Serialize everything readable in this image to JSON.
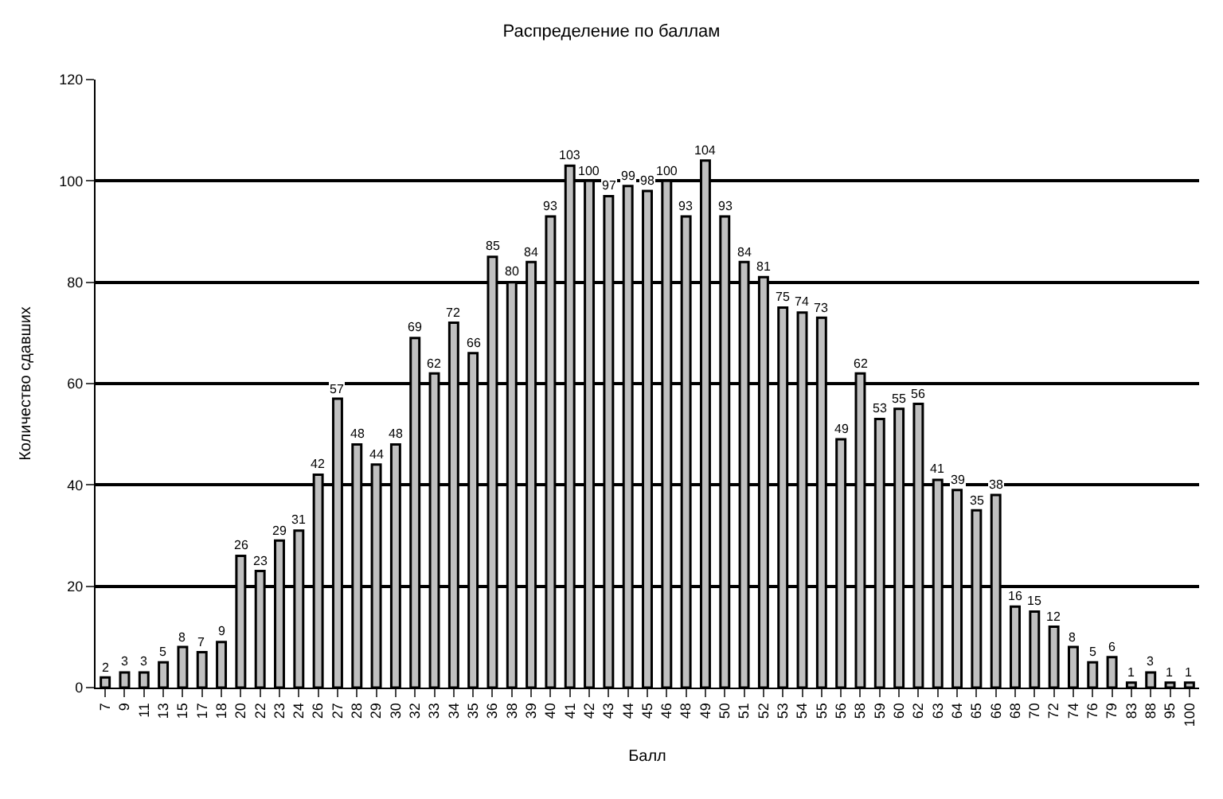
{
  "chart_data": {
    "type": "bar",
    "title": "Распределение по баллам",
    "xlabel": "Балл",
    "ylabel": "Количество сдавших",
    "categories": [
      "7",
      "9",
      "11",
      "13",
      "15",
      "17",
      "18",
      "20",
      "22",
      "23",
      "24",
      "26",
      "27",
      "28",
      "29",
      "30",
      "32",
      "33",
      "34",
      "35",
      "36",
      "38",
      "39",
      "40",
      "41",
      "42",
      "43",
      "44",
      "45",
      "46",
      "48",
      "49",
      "50",
      "51",
      "52",
      "53",
      "54",
      "55",
      "56",
      "58",
      "59",
      "60",
      "62",
      "63",
      "64",
      "65",
      "66",
      "68",
      "70",
      "72",
      "74",
      "76",
      "79",
      "83",
      "88",
      "95",
      "100"
    ],
    "values": [
      2,
      3,
      3,
      5,
      8,
      7,
      9,
      26,
      23,
      29,
      31,
      42,
      57,
      48,
      44,
      48,
      69,
      62,
      72,
      66,
      85,
      80,
      84,
      93,
      103,
      100,
      97,
      99,
      98,
      100,
      93,
      104,
      93,
      84,
      81,
      75,
      74,
      73,
      49,
      62,
      53,
      55,
      56,
      41,
      39,
      35,
      38,
      16,
      15,
      12,
      8,
      5,
      6,
      1,
      3,
      1,
      1
    ],
    "color": "#c0c0c0",
    "ylim": [
      0,
      120
    ],
    "yticks": [
      0,
      20,
      40,
      60,
      80,
      100,
      120
    ],
    "grid": "y",
    "data_labels": true
  }
}
